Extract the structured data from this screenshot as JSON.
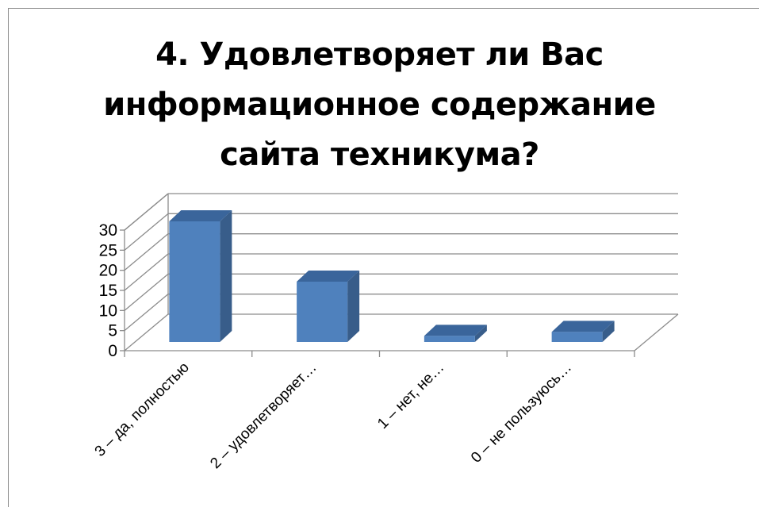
{
  "chart_data": {
    "type": "bar",
    "title": "4. Удовлетворяет ли Вас\nинформационное содержание\nсайта техникума?",
    "categories": [
      "3 – да, полностью",
      "2 – удовлетворяет…",
      "1 – нет, не…",
      "0 – не пользуюсь…"
    ],
    "values": [
      30,
      15,
      1.5,
      2.5
    ],
    "ylim": [
      0,
      30
    ],
    "yticks": [
      0,
      5,
      10,
      15,
      20,
      25,
      30
    ],
    "yticks_labels": [
      "0",
      "5",
      "10",
      "15",
      "20",
      "25",
      "30"
    ],
    "grid": true,
    "legend": "none",
    "style": "3d-column",
    "colors": {
      "front": "#4f81bd",
      "side": "#385d8a",
      "top": "#3a659b",
      "grid": "#8c8c8c"
    }
  }
}
